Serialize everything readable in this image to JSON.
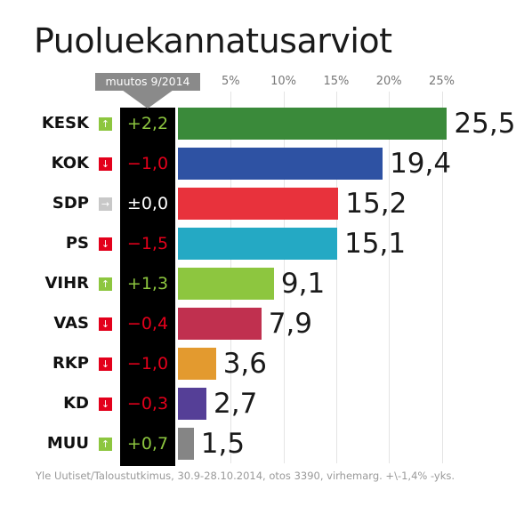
{
  "title": "Puoluekannatusarviot",
  "change_header": "muutos 9/2014",
  "source": "Yle Uutiset/Taloustutkimus, 30.9-28.10.2014, otos 3390, virhemarg. +\\-1,4% -yks.",
  "colors": {
    "up": "#8dc63f",
    "down": "#e3001b",
    "neutral": "#c8c8c8"
  },
  "chart_data": {
    "type": "bar",
    "orientation": "horizontal",
    "title": "Puoluekannatusarviot",
    "xlim": [
      0,
      26
    ],
    "ticks": [
      {
        "value": 5,
        "label": "5%"
      },
      {
        "value": 10,
        "label": "10%"
      },
      {
        "value": 15,
        "label": "15%"
      },
      {
        "value": 20,
        "label": "20%"
      },
      {
        "value": 25,
        "label": "25%"
      }
    ],
    "rows": [
      {
        "party": "KESK",
        "value": 25.5,
        "value_label": "25,5",
        "change": "+2,2",
        "direction": "up",
        "color": "#3a8a3a"
      },
      {
        "party": "KOK",
        "value": 19.4,
        "value_label": "19,4",
        "change": "−1,0",
        "direction": "down",
        "color": "#2e52a3"
      },
      {
        "party": "SDP",
        "value": 15.2,
        "value_label": "15,2",
        "change": "±0,0",
        "direction": "neutral",
        "color": "#e8323c"
      },
      {
        "party": "PS",
        "value": 15.1,
        "value_label": "15,1",
        "change": "−1,5",
        "direction": "down",
        "color": "#24a9c4"
      },
      {
        "party": "VIHR",
        "value": 9.1,
        "value_label": "9,1",
        "change": "+1,3",
        "direction": "up",
        "color": "#8dc63f"
      },
      {
        "party": "VAS",
        "value": 7.9,
        "value_label": "7,9",
        "change": "−0,4",
        "direction": "down",
        "color": "#c0304f"
      },
      {
        "party": "RKP",
        "value": 3.6,
        "value_label": "3,6",
        "change": "−1,0",
        "direction": "down",
        "color": "#e39a2f"
      },
      {
        "party": "KD",
        "value": 2.7,
        "value_label": "2,7",
        "change": "−0,3",
        "direction": "down",
        "color": "#553f97"
      },
      {
        "party": "MUU",
        "value": 1.5,
        "value_label": "1,5",
        "change": "+0,7",
        "direction": "up",
        "color": "#858585"
      }
    ]
  }
}
